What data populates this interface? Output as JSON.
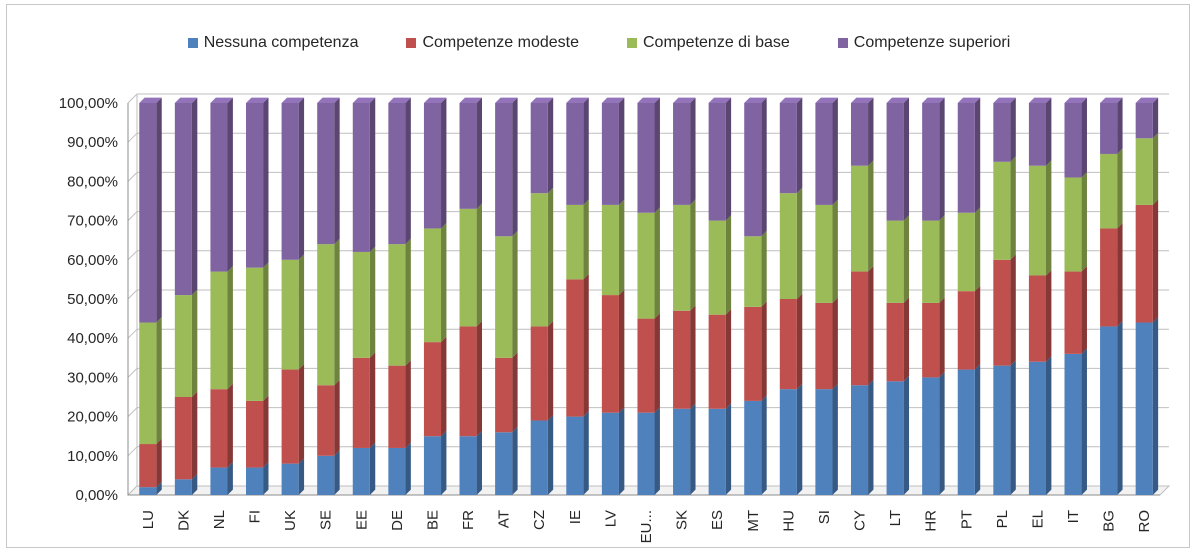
{
  "chart_data": {
    "type": "bar",
    "stacked": true,
    "percent": true,
    "categories": [
      "LU",
      "DK",
      "NL",
      "FI",
      "UK",
      "SE",
      "EE",
      "DE",
      "BE",
      "FR",
      "AT",
      "CZ",
      "IE",
      "LV",
      "EU...",
      "SK",
      "ES",
      "MT",
      "HU",
      "SI",
      "CY",
      "LT",
      "HR",
      "PT",
      "PL",
      "EL",
      "IT",
      "BG",
      "RO"
    ],
    "series": [
      {
        "name": "Nessuna competenza",
        "color": "#4F81BD",
        "values": [
          2,
          4,
          7,
          7,
          8,
          10,
          12,
          12,
          15,
          15,
          16,
          19,
          20,
          21,
          21,
          22,
          22,
          24,
          27,
          27,
          28,
          29,
          30,
          32,
          33,
          34,
          36,
          43,
          44
        ]
      },
      {
        "name": "Competenze modeste",
        "color": "#C0504D",
        "values": [
          11,
          21,
          20,
          17,
          24,
          18,
          23,
          21,
          24,
          28,
          19,
          24,
          35,
          30,
          24,
          25,
          24,
          24,
          23,
          22,
          29,
          20,
          19,
          20,
          27,
          22,
          21,
          25,
          30
        ]
      },
      {
        "name": "Competenze di base",
        "color": "#9BBB59",
        "values": [
          31,
          26,
          30,
          34,
          28,
          36,
          27,
          31,
          29,
          30,
          31,
          34,
          19,
          23,
          27,
          27,
          24,
          18,
          27,
          25,
          27,
          21,
          21,
          20,
          25,
          28,
          24,
          19,
          17
        ]
      },
      {
        "name": "Competenze superiori",
        "color": "#8064A2",
        "values": [
          56,
          49,
          43,
          42,
          40,
          36,
          38,
          36,
          32,
          27,
          34,
          23,
          26,
          26,
          28,
          26,
          30,
          34,
          23,
          26,
          16,
          30,
          30,
          28,
          15,
          16,
          19,
          13,
          9
        ]
      }
    ],
    "y_ticks": [
      "0,00%",
      "10,00%",
      "20,00%",
      "30,00%",
      "40,00%",
      "50,00%",
      "60,00%",
      "70,00%",
      "80,00%",
      "90,00%",
      "100,00%"
    ],
    "ylim": [
      0,
      100
    ],
    "grid": true,
    "legend_position": "top"
  }
}
